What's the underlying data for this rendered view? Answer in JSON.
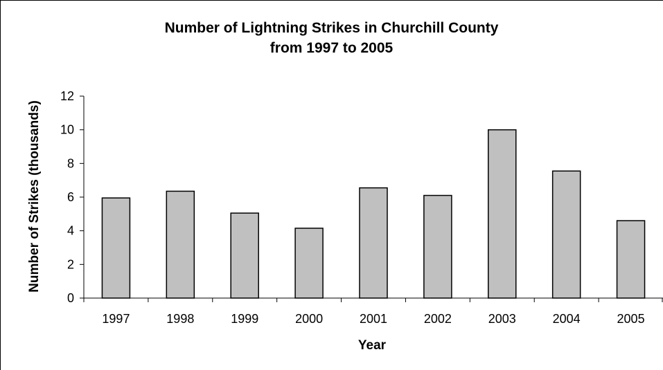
{
  "chart_data": {
    "type": "bar",
    "title_line1": "Number of Lightning Strikes in Churchill County",
    "title_line2": "from 1997 to 2005",
    "xlabel": "Year",
    "ylabel": "Number of Strikes (thousands)",
    "categories": [
      "1997",
      "1998",
      "1999",
      "2000",
      "2001",
      "2002",
      "2003",
      "2004",
      "2005"
    ],
    "values": [
      5.95,
      6.35,
      5.05,
      4.15,
      6.55,
      6.1,
      10.0,
      7.55,
      4.6
    ],
    "ylim": [
      0,
      12
    ],
    "yticks": [
      0,
      2,
      4,
      6,
      8,
      10,
      12
    ],
    "grid": false,
    "legend": "none",
    "bar_color": "#c0c0c0",
    "bar_edge_color": "#000000"
  }
}
